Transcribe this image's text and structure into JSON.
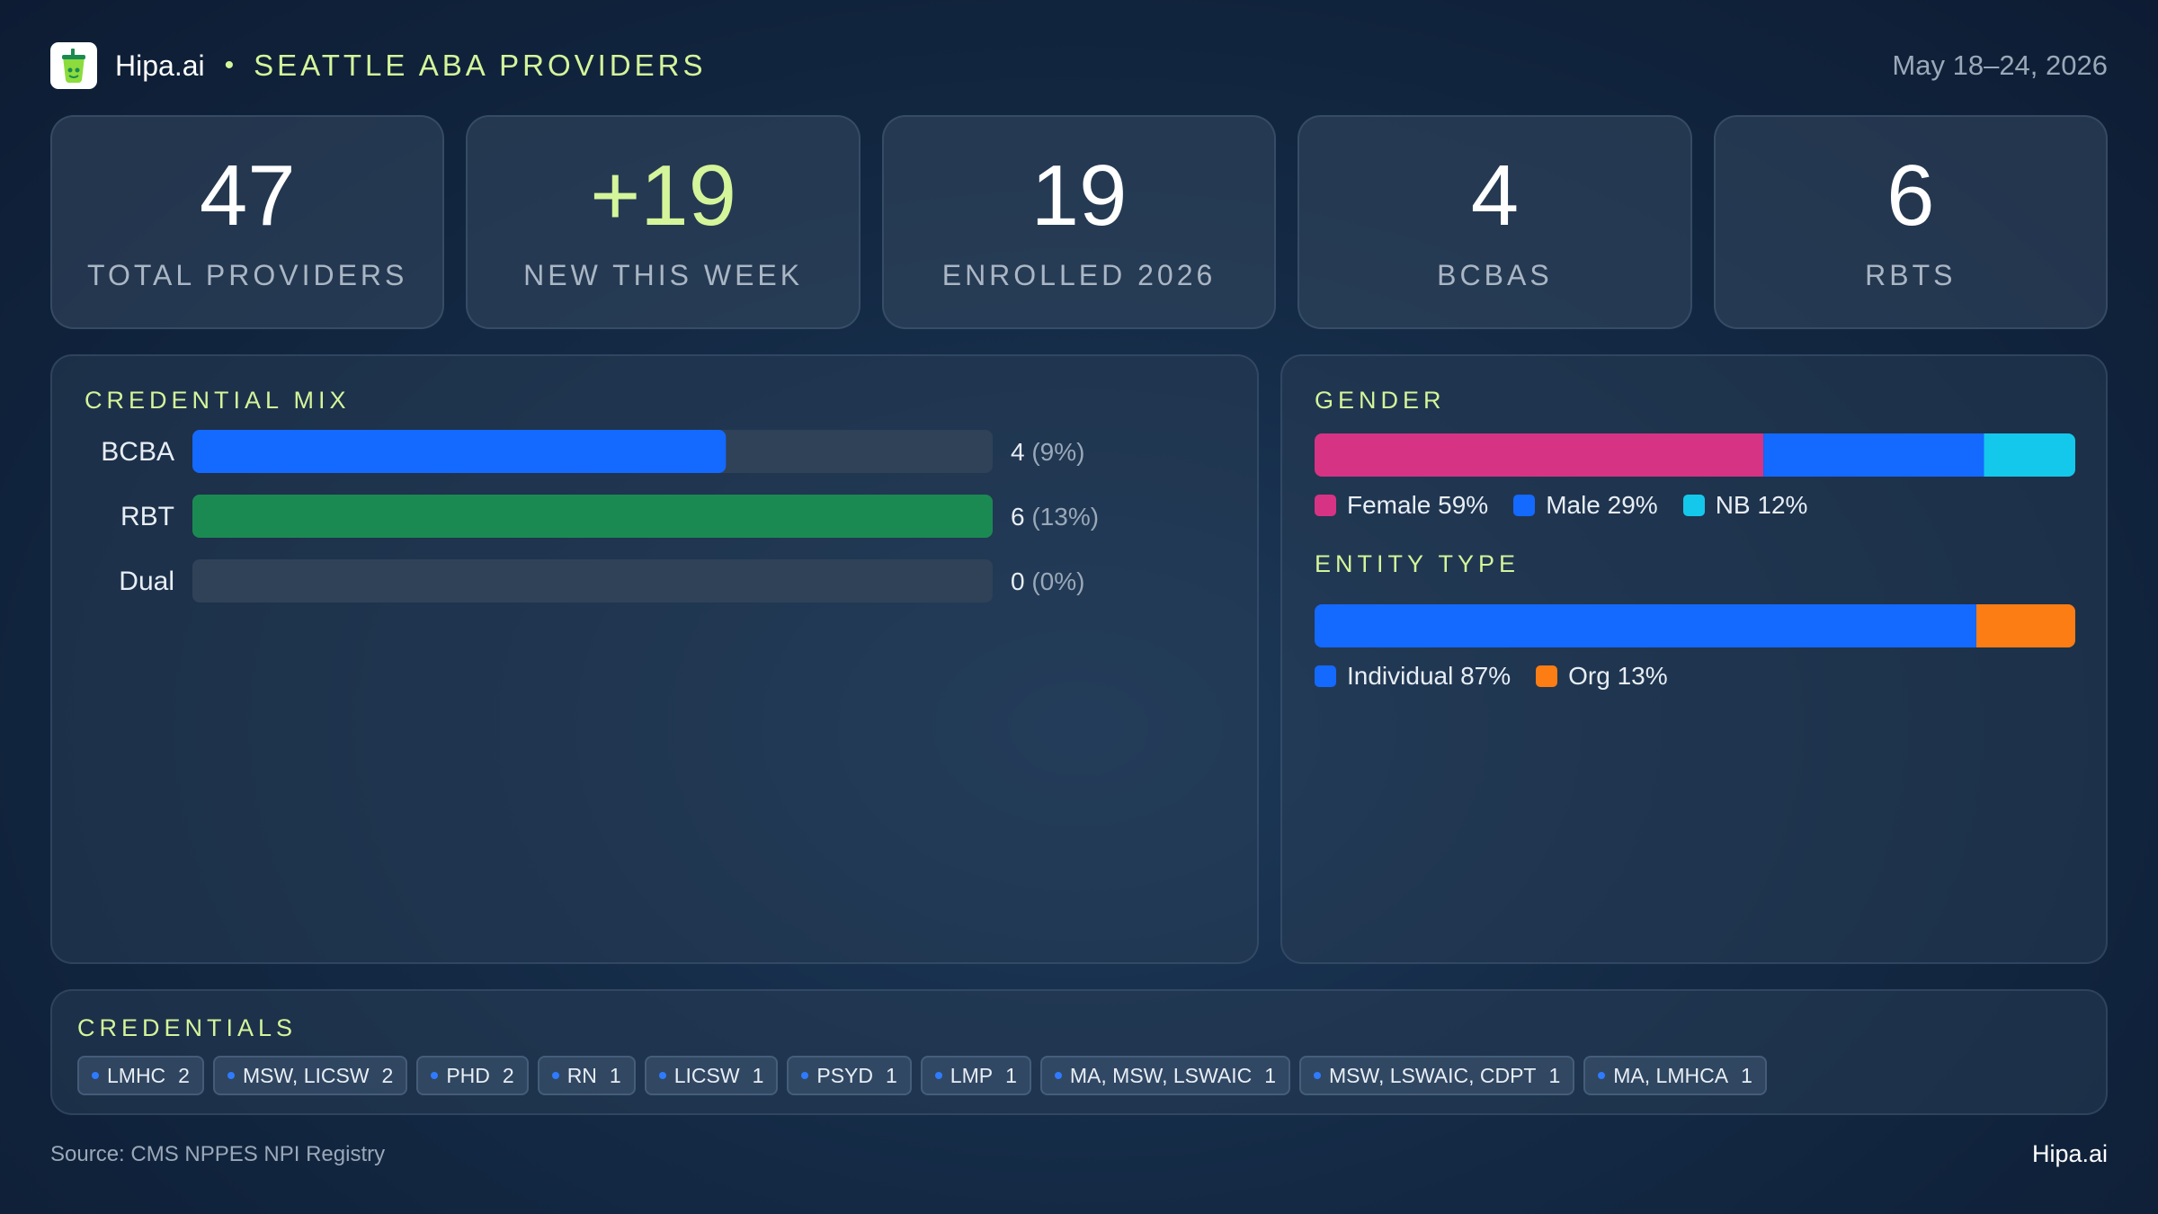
{
  "header": {
    "brand": "Hipa.ai",
    "separator": "•",
    "region": "SEATTLE ABA PROVIDERS",
    "date_range": "May 18–24, 2026",
    "logo_icon": "cup-icon"
  },
  "kpis": [
    {
      "value": "47",
      "label": "TOTAL PROVIDERS",
      "accent": false
    },
    {
      "value": "+19",
      "label": "NEW THIS WEEK",
      "accent": true
    },
    {
      "value": "19",
      "label": "ENROLLED 2026",
      "accent": false
    },
    {
      "value": "4",
      "label": "BCBAS",
      "accent": false
    },
    {
      "value": "6",
      "label": "RBTS",
      "accent": false
    }
  ],
  "colors": {
    "accent": "#d4f59a",
    "blue": "#1469ff",
    "green": "#1b8a52",
    "pink": "#d63384",
    "cyan": "#14c8ec",
    "orange": "#fb7d14",
    "track": "#2f4258"
  },
  "chart_data": [
    {
      "type": "bar",
      "title": "CREDENTIAL MIX",
      "categories": [
        "BCBA",
        "RBT",
        "Dual"
      ],
      "values": [
        4,
        6,
        0
      ],
      "value_labels": [
        "4",
        "6",
        "0"
      ],
      "pct_labels": [
        "(9%)",
        "(13%)",
        "(0%)"
      ],
      "colors": [
        "#1469ff",
        "#1b8a52",
        "#1469ff"
      ],
      "xlim": [
        0,
        6
      ]
    },
    {
      "type": "bar",
      "stacked": true,
      "title": "GENDER",
      "categories": [
        "Female",
        "Male",
        "NB"
      ],
      "values": [
        59,
        29,
        12
      ],
      "labels": [
        "Female 59%",
        "Male 29%",
        "NB 12%"
      ],
      "colors": [
        "#d63384",
        "#1469ff",
        "#14c8ec"
      ]
    },
    {
      "type": "bar",
      "stacked": true,
      "title": "ENTITY TYPE",
      "categories": [
        "Individual",
        "Org"
      ],
      "values": [
        87,
        13
      ],
      "labels": [
        "Individual 87%",
        "Org 13%"
      ],
      "colors": [
        "#1469ff",
        "#fb7d14"
      ]
    }
  ],
  "credentials": {
    "title": "CREDENTIALS",
    "chips": [
      {
        "name": "LMHC",
        "count": "2"
      },
      {
        "name": "MSW, LICSW",
        "count": "2"
      },
      {
        "name": "PHD",
        "count": "2"
      },
      {
        "name": "RN",
        "count": "1"
      },
      {
        "name": "LICSW",
        "count": "1"
      },
      {
        "name": "PSYD",
        "count": "1"
      },
      {
        "name": "LMP",
        "count": "1"
      },
      {
        "name": "MA, MSW, LSWAIC",
        "count": "1"
      },
      {
        "name": "MSW, LSWAIC, CDPT",
        "count": "1"
      },
      {
        "name": "MA, LMHCA",
        "count": "1"
      }
    ]
  },
  "footer": {
    "source": "Source: CMS NPPES NPI Registry",
    "brand": "Hipa.ai"
  }
}
